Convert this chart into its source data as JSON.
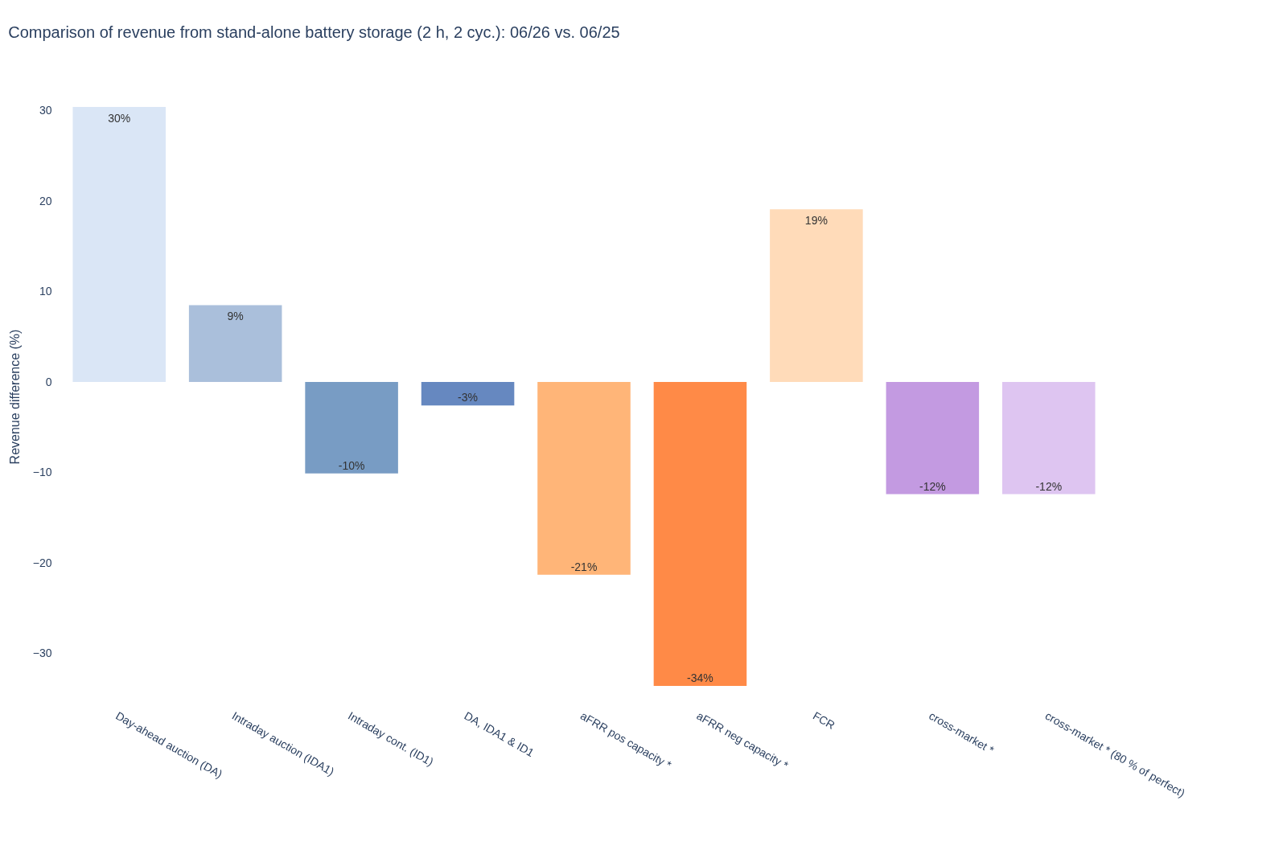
{
  "chart_data": {
    "type": "bar",
    "title": "Comparison of revenue from stand-alone battery storage (2 h, 2 cyc.): 06/26 vs. 06/25",
    "ylabel": "Revenue difference (%)",
    "categories": [
      "Day-ahead auction (DA)",
      "Intraday auction (IDA1)",
      "Intraday cont. (ID1)",
      "DA, IDA1 & ID1",
      "aFRR pos capacity *",
      "aFRR neg capacity *",
      "FCR",
      "cross-market *",
      "cross-market * (80 % of perfect)"
    ],
    "values": [
      30.4,
      8.5,
      -10.1,
      -2.6,
      -21.3,
      -33.6,
      19.1,
      -12.4,
      -12.4
    ],
    "value_labels": [
      "30%",
      "9%",
      "-10%",
      "-3%",
      "-21%",
      "-34%",
      "19%",
      "-12%",
      "-12%"
    ],
    "colors": [
      "#dae6f6",
      "#aabfdb",
      "#789cc4",
      "#6688c0",
      "#ffb578",
      "#ff8a47",
      "#ffdbb9",
      "#c39ae1",
      "#dec5f1"
    ],
    "ylim": [
      -33.6,
      30.4
    ],
    "yticks": [
      {
        "value": -30,
        "label": "−30"
      },
      {
        "value": -20,
        "label": "−20"
      },
      {
        "value": -10,
        "label": "−10"
      },
      0,
      10,
      20,
      30
    ],
    "grid": false
  }
}
